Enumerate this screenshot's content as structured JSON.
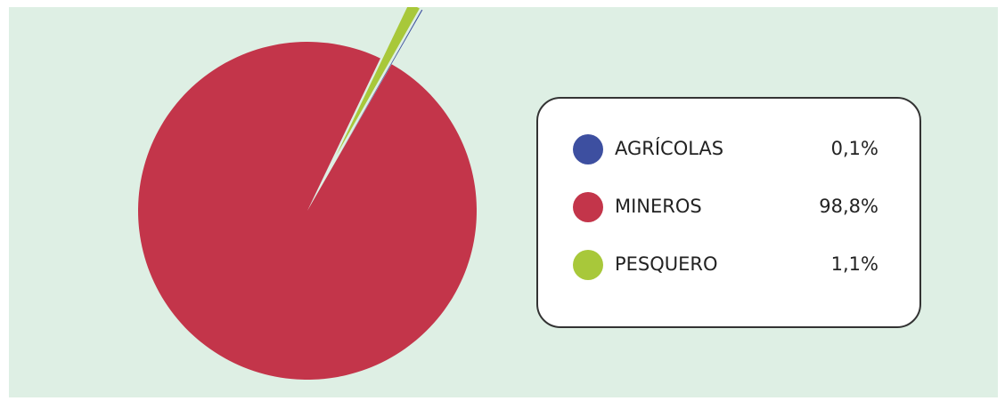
{
  "chart_data": {
    "type": "pie",
    "categories": [
      "AGRÍCOLAS",
      "MINEROS",
      "PESQUERO"
    ],
    "values": [
      0.1,
      98.8,
      1.1
    ],
    "value_labels": [
      "0,1%",
      "98,8%",
      "1,1%"
    ],
    "colors": [
      "#3d4fa0",
      "#c3354a",
      "#a8c83a"
    ]
  }
}
